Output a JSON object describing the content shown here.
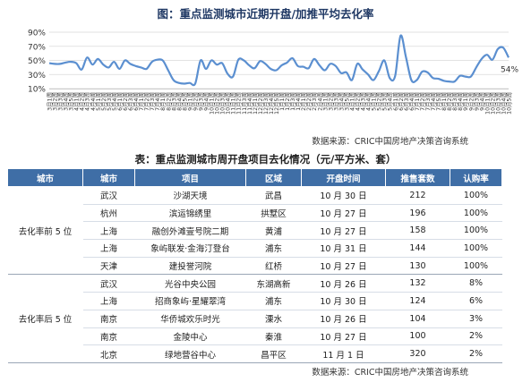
{
  "chart_data": {
    "type": "line",
    "title": "图：重点监测城市近期开盘/加推平均去化率",
    "yticks": [
      "90%",
      "70%",
      "50%",
      "30%",
      "10%"
    ],
    "ylim": [
      10,
      90
    ],
    "categories": [
      "3月1周",
      "3月2周",
      "3月3周",
      "3月4周",
      "3月5周",
      "4月1周",
      "4月2周",
      "4月3周",
      "4月4周",
      "5月1周",
      "5月2周",
      "5月3周",
      "5月4周",
      "6月1周",
      "6月2周",
      "6月3周",
      "6月4周",
      "7月1周",
      "7月2周",
      "7月3周",
      "7月4周",
      "8月1周",
      "8月2周",
      "8月3周",
      "8月4周",
      "8月5周",
      "9月1周",
      "9月2周",
      "9月3周",
      "9月4周",
      "10月1周",
      "10月2周",
      "10月3周",
      "10月4周",
      "11月1周",
      "11月2周",
      "11月3周",
      "11月4周",
      "12月1周",
      "12月2周",
      "12月3周",
      "12月4周",
      "12月5周",
      "1月1周",
      "1月2周",
      "1月3周",
      "1月4周",
      "2月1周",
      "2月2周",
      "2月3周",
      "2月4周",
      "3月1周",
      "3月2周",
      "3月3周",
      "3月4周",
      "3月5周",
      "4月1周",
      "4月2周",
      "4月3周",
      "4月4周",
      "5月1周",
      "5月2周",
      "5月3周",
      "5月4周",
      "6月1周",
      "6月2周",
      "6月3周",
      "6月4周",
      "7月1周",
      "7月2周",
      "7月3周",
      "7月4周",
      "7月5周",
      "8月1周",
      "8月2周",
      "8月3周",
      "8月4周",
      "9月1周",
      "9月2周",
      "9月3周",
      "9月4周",
      "10月1周",
      "10月2周",
      "10月3周",
      "10月4周",
      "10月5周"
    ],
    "series": [
      {
        "values": [
          46,
          45,
          45,
          47,
          48,
          46,
          37,
          54,
          44,
          52,
          44,
          40,
          48,
          38,
          50,
          45,
          42,
          40,
          38,
          48,
          51,
          50,
          36,
          22,
          18,
          17,
          18,
          17,
          50,
          38,
          50,
          44,
          46,
          31,
          27,
          51,
          50,
          43,
          39,
          49,
          45,
          38,
          36,
          43,
          47,
          53,
          42,
          41,
          39,
          52,
          43,
          36,
          45,
          42,
          32,
          33,
          22,
          45,
          37,
          30,
          22,
          35,
          50,
          25,
          28,
          85,
          55,
          22,
          22,
          34,
          33,
          25,
          24,
          21,
          20,
          20,
          28,
          27,
          27,
          40,
          52,
          58,
          51,
          66,
          68,
          54
        ]
      }
    ],
    "end_label": "54%",
    "line_color": "#5b8fd0"
  },
  "source_top": "数据来源：CRIC中国房地产决策咨询系统",
  "table": {
    "title": "表：重点监测城市周开盘项目去化情况（元/平方米、套）",
    "headers": [
      "城市",
      "城市",
      "项目",
      "区域",
      "开盘时间",
      "推售套数",
      "认购率"
    ],
    "groups": [
      {
        "label": "去化率前 5 位",
        "rows": [
          [
            "武汉",
            "沙湖天境",
            "武昌",
            "10 月 30 日",
            "212",
            "100%"
          ],
          [
            "杭州",
            "滨运锦绣里",
            "拱墅区",
            "10 月 27 日",
            "196",
            "100%"
          ],
          [
            "上海",
            "融创外滩壹号院二期",
            "黄浦",
            "10 月 27 日",
            "158",
            "100%"
          ],
          [
            "上海",
            "象屿联发·金海汀登台",
            "浦东",
            "10 月 31 日",
            "144",
            "100%"
          ],
          [
            "天津",
            "建投誉河院",
            "红桥",
            "10 月 27 日",
            "130",
            "100%"
          ]
        ]
      },
      {
        "label": "去化率后 5 位",
        "rows": [
          [
            "武汉",
            "光谷中央公园",
            "东湖高新",
            "10 月 26 日",
            "132",
            "8%"
          ],
          [
            "上海",
            "招商象屿·星耀翠湾",
            "浦东",
            "10 月 30 日",
            "124",
            "6%"
          ],
          [
            "南京",
            "华侨城欢乐时光",
            "溧水",
            "10 月 26 日",
            "104",
            "3%"
          ],
          [
            "南京",
            "金陵中心",
            "秦淮",
            "10 月 27 日",
            "100",
            "2%"
          ],
          [
            "北京",
            "绿地营谷中心",
            "昌平区",
            "11 月 1 日",
            "320",
            "2%"
          ]
        ]
      }
    ],
    "header_color": "#3f6ea6"
  },
  "source_bottom": "数据来源：CRIC中国房地产决策咨询系统"
}
